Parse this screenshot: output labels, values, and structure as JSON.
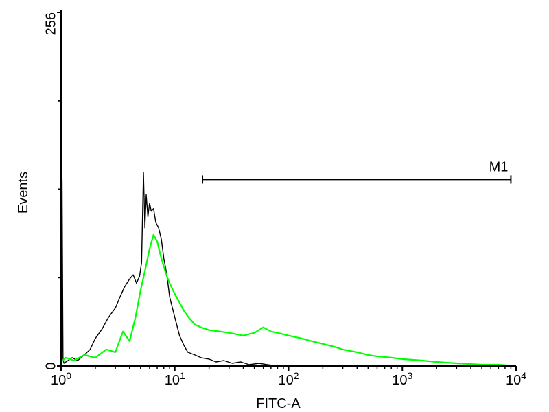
{
  "chart_data": {
    "type": "line",
    "xlabel": "FITC-A",
    "ylabel": "Events",
    "x_scale": "log",
    "xlim": [
      1,
      10000
    ],
    "ylim": [
      0,
      256
    ],
    "x_ticks": [
      {
        "value": 1,
        "base": "10",
        "exp": "0"
      },
      {
        "value": 10,
        "base": "10",
        "exp": "1"
      },
      {
        "value": 100,
        "base": "10",
        "exp": "2"
      },
      {
        "value": 1000,
        "base": "10",
        "exp": "3"
      },
      {
        "value": 10000,
        "base": "10",
        "exp": "4"
      }
    ],
    "y_ticks": [
      {
        "value": 0,
        "label": "0"
      },
      {
        "value": 256,
        "label": "256"
      }
    ],
    "y_minor_ticks": [
      64,
      128,
      192
    ],
    "marker": {
      "label": "M1",
      "x_start": 17.5,
      "x_end": 9000,
      "y": 135
    },
    "colors": {
      "control": "#000000",
      "sample": "#00ff00",
      "axis": "#000000"
    },
    "series": [
      {
        "key": "control",
        "x": [
          1.0,
          1.02,
          1.04,
          1.06,
          1.1,
          1.15,
          1.25,
          1.4,
          1.6,
          1.8,
          2.0,
          2.3,
          2.6,
          3.0,
          3.3,
          3.6,
          4.0,
          4.3,
          4.6,
          4.9,
          5.1,
          5.3,
          5.45,
          5.6,
          5.8,
          6.0,
          6.2,
          6.5,
          6.8,
          7.2,
          7.6,
          8.0,
          8.5,
          9.0,
          10.0,
          11.0,
          12.0,
          13.0,
          15.0,
          17.0,
          20.0,
          23.0,
          27.0,
          32.0,
          38.0,
          45.0,
          55.0,
          65.0,
          80.0,
          100.0
        ],
        "y": [
          0,
          135,
          5,
          2,
          3,
          4,
          6,
          4,
          8,
          12,
          20,
          27,
          35,
          42,
          50,
          57,
          63,
          66,
          60,
          65,
          75,
          140,
          100,
          124,
          108,
          118,
          112,
          114,
          104,
          100,
          92,
          78,
          66,
          50,
          35,
          22,
          15,
          10,
          8,
          6,
          5,
          3,
          4,
          2,
          3,
          1,
          2,
          1,
          0,
          0
        ]
      },
      {
        "key": "sample",
        "x": [
          1.0,
          1.1,
          1.3,
          1.6,
          2.0,
          2.5,
          3.0,
          3.5,
          4.0,
          4.5,
          5.0,
          5.5,
          6.0,
          6.5,
          7.0,
          7.5,
          8.0,
          8.5,
          9.0,
          10.0,
          11.0,
          12.0,
          13.0,
          15.0,
          17.0,
          20.0,
          25.0,
          30.0,
          40.0,
          50.0,
          60.0,
          70.0,
          80.0,
          100.0,
          130.0,
          160.0,
          200.0,
          250.0,
          300.0,
          400.0,
          500.0,
          600.0,
          800.0,
          1000.0,
          1500.0,
          2000.0,
          3000.0,
          5000.0,
          7000.0,
          10000.0
        ],
        "y": [
          3,
          6,
          4,
          8,
          6,
          12,
          10,
          25,
          18,
          35,
          55,
          70,
          85,
          95,
          90,
          80,
          72,
          65,
          60,
          52,
          46,
          40,
          36,
          30,
          28,
          26,
          25,
          24,
          22,
          24,
          28,
          25,
          24,
          22,
          20,
          18,
          16,
          14,
          12,
          10,
          8,
          7,
          6,
          5,
          4,
          3,
          2,
          1,
          1,
          0
        ]
      }
    ]
  }
}
